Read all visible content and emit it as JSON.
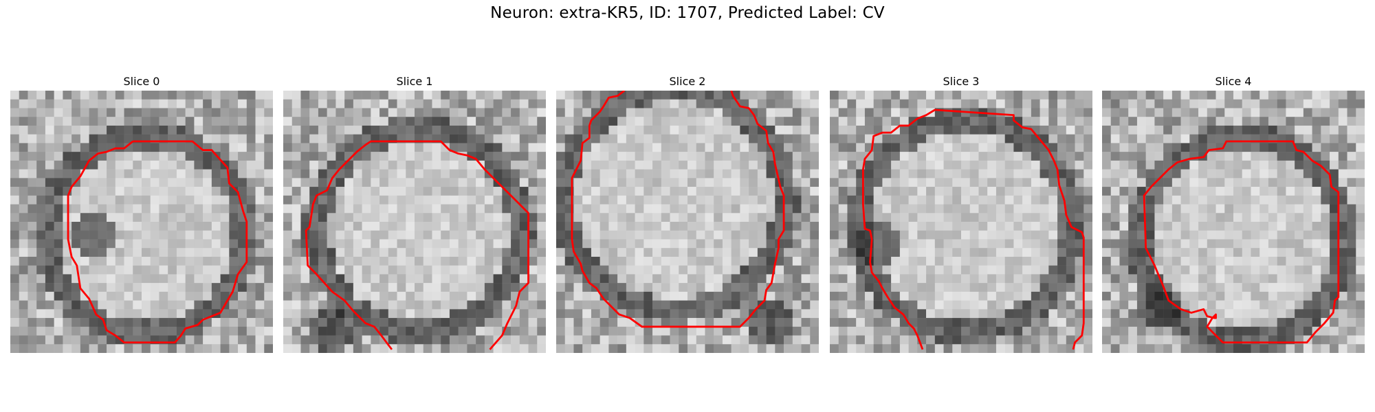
{
  "figure": {
    "title": "Neuron: extra-KR5, ID: 1707, Predicted Label: CV",
    "contour_color": "#ff0000"
  },
  "panels": [
    {
      "title": "Slice 0"
    },
    {
      "title": "Slice 1"
    },
    {
      "title": "Slice 2"
    },
    {
      "title": "Slice 3"
    },
    {
      "title": "Slice 4"
    }
  ]
}
